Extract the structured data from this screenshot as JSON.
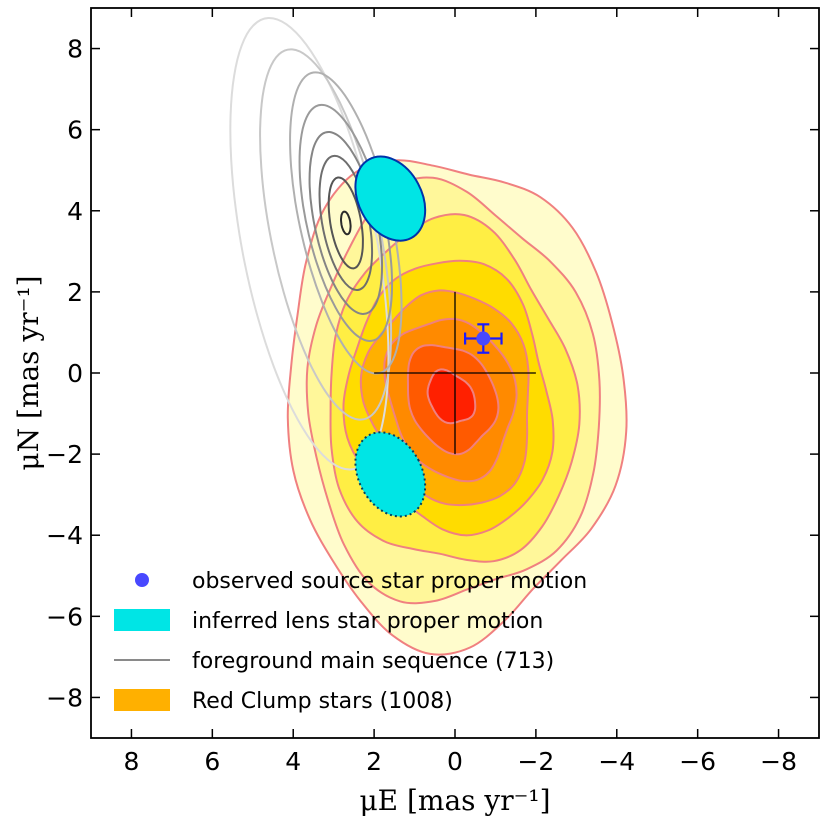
{
  "chart_data": {
    "type": "contour",
    "xlabel": "μE [mas yr⁻¹]",
    "ylabel": "μN [mas yr⁻¹]",
    "xlim": [
      9,
      -9
    ],
    "ylim": [
      -9,
      9
    ],
    "x_ticks": [
      8,
      6,
      4,
      2,
      0,
      -2,
      -4,
      -6,
      -8
    ],
    "y_ticks": [
      8,
      6,
      4,
      2,
      0,
      -2,
      -4,
      -6,
      -8
    ],
    "x_tick_labels": [
      "8",
      "6",
      "4",
      "2",
      "0",
      "−2",
      "−4",
      "−6",
      "−8"
    ],
    "y_tick_labels": [
      "8",
      "6",
      "4",
      "2",
      "0",
      "−2",
      "−4",
      "−6",
      "−8"
    ],
    "red_clump": {
      "name": "Red Clump stars (1008)",
      "center": [
        0.1,
        -0.6
      ],
      "fill_colors": [
        "#fffccc",
        "#fff79a",
        "#ffee44",
        "#ffdc00",
        "#ffb000",
        "#ff8a00",
        "#ff5a00",
        "#ff2000"
      ],
      "line_color": "#f08080",
      "levels": 8
    },
    "main_sequence": {
      "name": "foreground main sequence (713)",
      "center": [
        2.7,
        3.7
      ],
      "levels": 8,
      "line_colors": [
        "#dcdcdc",
        "#c8c8c8",
        "#b0b0b0",
        "#9a9a9a",
        "#858585",
        "#6e6e6e",
        "#555555",
        "#2b2b2b"
      ]
    },
    "source_star": {
      "name": "observed source star proper motion",
      "x": -0.7,
      "y": 0.85,
      "xerr": 0.45,
      "yerr": 0.35,
      "color": "#4848ff"
    },
    "lens_star": {
      "name": "inferred lens star proper motion",
      "solutions": [
        {
          "x": 1.6,
          "y": 4.3,
          "style": "solid"
        },
        {
          "x": 1.6,
          "y": -2.5,
          "style": "dotted"
        }
      ],
      "color": "#00e5e5"
    },
    "crosshair": {
      "x": 0,
      "y": 0,
      "xrange": [
        2,
        -2
      ],
      "yrange": [
        -2,
        2
      ]
    },
    "legend": {
      "location": "lower-left",
      "entries": [
        "observed source star proper motion",
        "inferred lens star proper motion",
        "foreground main sequence (713)",
        "Red Clump stars (1008)"
      ]
    }
  }
}
